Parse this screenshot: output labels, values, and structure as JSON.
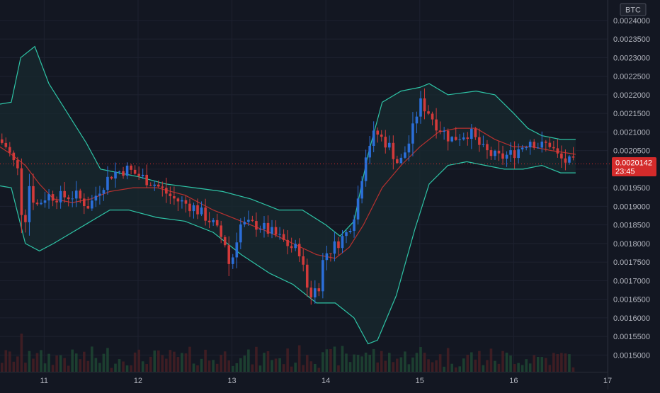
{
  "currency_badge": "BTC",
  "last_price": {
    "value": "0.0020142",
    "countdown": "23:45"
  },
  "colors": {
    "background": "#131722",
    "grid": "#1e2230",
    "up": "#2b6ed8",
    "down": "#d23a3a",
    "band": "#2ec4a6",
    "band_fill": "#182a2f",
    "basis": "#b8312f",
    "axis_text": "#b2b5be",
    "price_label_bg": "#d42b2b"
  },
  "chart_data": {
    "type": "candlestick",
    "title": "",
    "xlabel": "",
    "ylabel": "",
    "ylim": [
      0.001455,
      0.002455
    ],
    "xlim": [
      10.53,
      17.0
    ],
    "grid": true,
    "legend": "none",
    "x_ticks": [
      {
        "value": 11,
        "label": "11"
      },
      {
        "value": 12,
        "label": "12"
      },
      {
        "value": 13,
        "label": "13"
      },
      {
        "value": 14,
        "label": "14"
      },
      {
        "value": 15,
        "label": "15"
      },
      {
        "value": 16,
        "label": "16"
      },
      {
        "value": 17,
        "label": "17"
      }
    ],
    "y_ticks": [
      {
        "value": 0.0015,
        "label": "0.0015000"
      },
      {
        "value": 0.00155,
        "label": "0.0015500"
      },
      {
        "value": 0.0016,
        "label": "0.0016000"
      },
      {
        "value": 0.00165,
        "label": "0.0016500"
      },
      {
        "value": 0.0017,
        "label": "0.0017000"
      },
      {
        "value": 0.00175,
        "label": "0.0017500"
      },
      {
        "value": 0.0018,
        "label": "0.0018000"
      },
      {
        "value": 0.00185,
        "label": "0.0018500"
      },
      {
        "value": 0.0019,
        "label": "0.0019000"
      },
      {
        "value": 0.00195,
        "label": "0.0019500"
      },
      {
        "value": 0.002,
        "label": "0.0020000"
      },
      {
        "value": 0.00205,
        "label": "0.0020500"
      },
      {
        "value": 0.0021,
        "label": "0.0021000"
      },
      {
        "value": 0.00215,
        "label": "0.0021500"
      },
      {
        "value": 0.0022,
        "label": "0.0022000"
      },
      {
        "value": 0.00225,
        "label": "0.0022500"
      },
      {
        "value": 0.0023,
        "label": "0.0023000"
      },
      {
        "value": 0.00235,
        "label": "0.0023500"
      },
      {
        "value": 0.0024,
        "label": "0.0024000"
      }
    ],
    "price_anchors": [
      [
        10.53,
        0.00208
      ],
      [
        10.62,
        0.00206
      ],
      [
        10.75,
        0.00199
      ],
      [
        10.8,
        0.00182
      ],
      [
        10.86,
        0.00196
      ],
      [
        10.93,
        0.0019
      ],
      [
        11.05,
        0.00193
      ],
      [
        11.2,
        0.001925
      ],
      [
        11.35,
        0.00193
      ],
      [
        11.5,
        0.0019
      ],
      [
        11.62,
        0.00195
      ],
      [
        11.75,
        0.00199
      ],
      [
        11.9,
        0.002
      ],
      [
        12.05,
        0.00198
      ],
      [
        12.2,
        0.00196
      ],
      [
        12.4,
        0.00192
      ],
      [
        12.6,
        0.0019
      ],
      [
        12.8,
        0.00186
      ],
      [
        12.95,
        0.0018
      ],
      [
        13.0,
        0.00173
      ],
      [
        13.1,
        0.00185
      ],
      [
        13.3,
        0.00185
      ],
      [
        13.5,
        0.00182
      ],
      [
        13.65,
        0.00179
      ],
      [
        13.75,
        0.00178
      ],
      [
        13.8,
        0.0017
      ],
      [
        13.85,
        0.00166
      ],
      [
        13.95,
        0.00169
      ],
      [
        14.0,
        0.00177
      ],
      [
        14.1,
        0.00179
      ],
      [
        14.25,
        0.00183
      ],
      [
        14.35,
        0.0019
      ],
      [
        14.45,
        0.00205
      ],
      [
        14.55,
        0.0021
      ],
      [
        14.7,
        0.00206
      ],
      [
        14.8,
        0.00201
      ],
      [
        14.92,
        0.00208
      ],
      [
        15.02,
        0.00218
      ],
      [
        15.1,
        0.00216
      ],
      [
        15.2,
        0.00212
      ],
      [
        15.35,
        0.00208
      ],
      [
        15.55,
        0.0021
      ],
      [
        15.7,
        0.00205
      ],
      [
        15.85,
        0.00203
      ],
      [
        16.0,
        0.00204
      ],
      [
        16.1,
        0.00206
      ],
      [
        16.2,
        0.00208
      ],
      [
        16.3,
        0.00206
      ],
      [
        16.4,
        0.00207
      ],
      [
        16.5,
        0.00203
      ],
      [
        16.58,
        0.00202
      ],
      [
        16.66,
        0.002014
      ]
    ],
    "bollinger_upper": [
      [
        10.53,
        0.002175
      ],
      [
        10.65,
        0.00218
      ],
      [
        10.75,
        0.0023
      ],
      [
        10.9,
        0.00233
      ],
      [
        11.05,
        0.00223
      ],
      [
        11.25,
        0.00215
      ],
      [
        11.45,
        0.00207
      ],
      [
        11.6,
        0.002
      ],
      [
        11.8,
        0.00199
      ],
      [
        12.0,
        0.00198
      ],
      [
        12.3,
        0.00196
      ],
      [
        12.6,
        0.00195
      ],
      [
        12.9,
        0.00194
      ],
      [
        13.2,
        0.00192
      ],
      [
        13.5,
        0.00189
      ],
      [
        13.75,
        0.00189
      ],
      [
        14.0,
        0.00185
      ],
      [
        14.15,
        0.00182
      ],
      [
        14.3,
        0.00186
      ],
      [
        14.45,
        0.00204
      ],
      [
        14.6,
        0.00218
      ],
      [
        14.8,
        0.00221
      ],
      [
        15.0,
        0.00222
      ],
      [
        15.1,
        0.00223
      ],
      [
        15.3,
        0.0022
      ],
      [
        15.6,
        0.00221
      ],
      [
        15.8,
        0.0022
      ],
      [
        16.0,
        0.00215
      ],
      [
        16.15,
        0.00211
      ],
      [
        16.3,
        0.00209
      ],
      [
        16.5,
        0.00208
      ],
      [
        16.66,
        0.00208
      ]
    ],
    "bollinger_basis": [
      [
        10.53,
        0.00206
      ],
      [
        10.65,
        0.00204
      ],
      [
        10.8,
        0.00201
      ],
      [
        10.95,
        0.00196
      ],
      [
        11.1,
        0.00192
      ],
      [
        11.3,
        0.00191
      ],
      [
        11.5,
        0.00192
      ],
      [
        11.7,
        0.00194
      ],
      [
        11.95,
        0.00195
      ],
      [
        12.2,
        0.00195
      ],
      [
        12.5,
        0.00193
      ],
      [
        12.8,
        0.00189
      ],
      [
        13.1,
        0.00186
      ],
      [
        13.4,
        0.00183
      ],
      [
        13.65,
        0.0018
      ],
      [
        13.9,
        0.00177
      ],
      [
        14.1,
        0.00176
      ],
      [
        14.25,
        0.00179
      ],
      [
        14.4,
        0.00185
      ],
      [
        14.6,
        0.00195
      ],
      [
        14.8,
        0.00201
      ],
      [
        15.0,
        0.00206
      ],
      [
        15.2,
        0.0021
      ],
      [
        15.4,
        0.00211
      ],
      [
        15.6,
        0.00211
      ],
      [
        15.8,
        0.00208
      ],
      [
        16.0,
        0.00206
      ],
      [
        16.2,
        0.00206
      ],
      [
        16.4,
        0.00205
      ],
      [
        16.66,
        0.00204
      ]
    ],
    "bollinger_lower": [
      [
        10.53,
        0.001955
      ],
      [
        10.65,
        0.00195
      ],
      [
        10.8,
        0.0018
      ],
      [
        10.95,
        0.00178
      ],
      [
        11.1,
        0.0018
      ],
      [
        11.3,
        0.00183
      ],
      [
        11.5,
        0.00186
      ],
      [
        11.7,
        0.00189
      ],
      [
        11.9,
        0.00189
      ],
      [
        12.2,
        0.00187
      ],
      [
        12.5,
        0.00186
      ],
      [
        12.8,
        0.00183
      ],
      [
        13.1,
        0.00177
      ],
      [
        13.4,
        0.00172
      ],
      [
        13.65,
        0.00169
      ],
      [
        13.9,
        0.00164
      ],
      [
        14.1,
        0.00164
      ],
      [
        14.3,
        0.0016
      ],
      [
        14.45,
        0.00153
      ],
      [
        14.55,
        0.00154
      ],
      [
        14.75,
        0.00166
      ],
      [
        14.95,
        0.00184
      ],
      [
        15.1,
        0.00196
      ],
      [
        15.3,
        0.00201
      ],
      [
        15.5,
        0.00202
      ],
      [
        15.7,
        0.00201
      ],
      [
        15.9,
        0.002
      ],
      [
        16.1,
        0.002
      ],
      [
        16.3,
        0.00201
      ],
      [
        16.5,
        0.00199
      ],
      [
        16.66,
        0.00199
      ]
    ],
    "volume_note": "volume histogram at chart bottom"
  }
}
